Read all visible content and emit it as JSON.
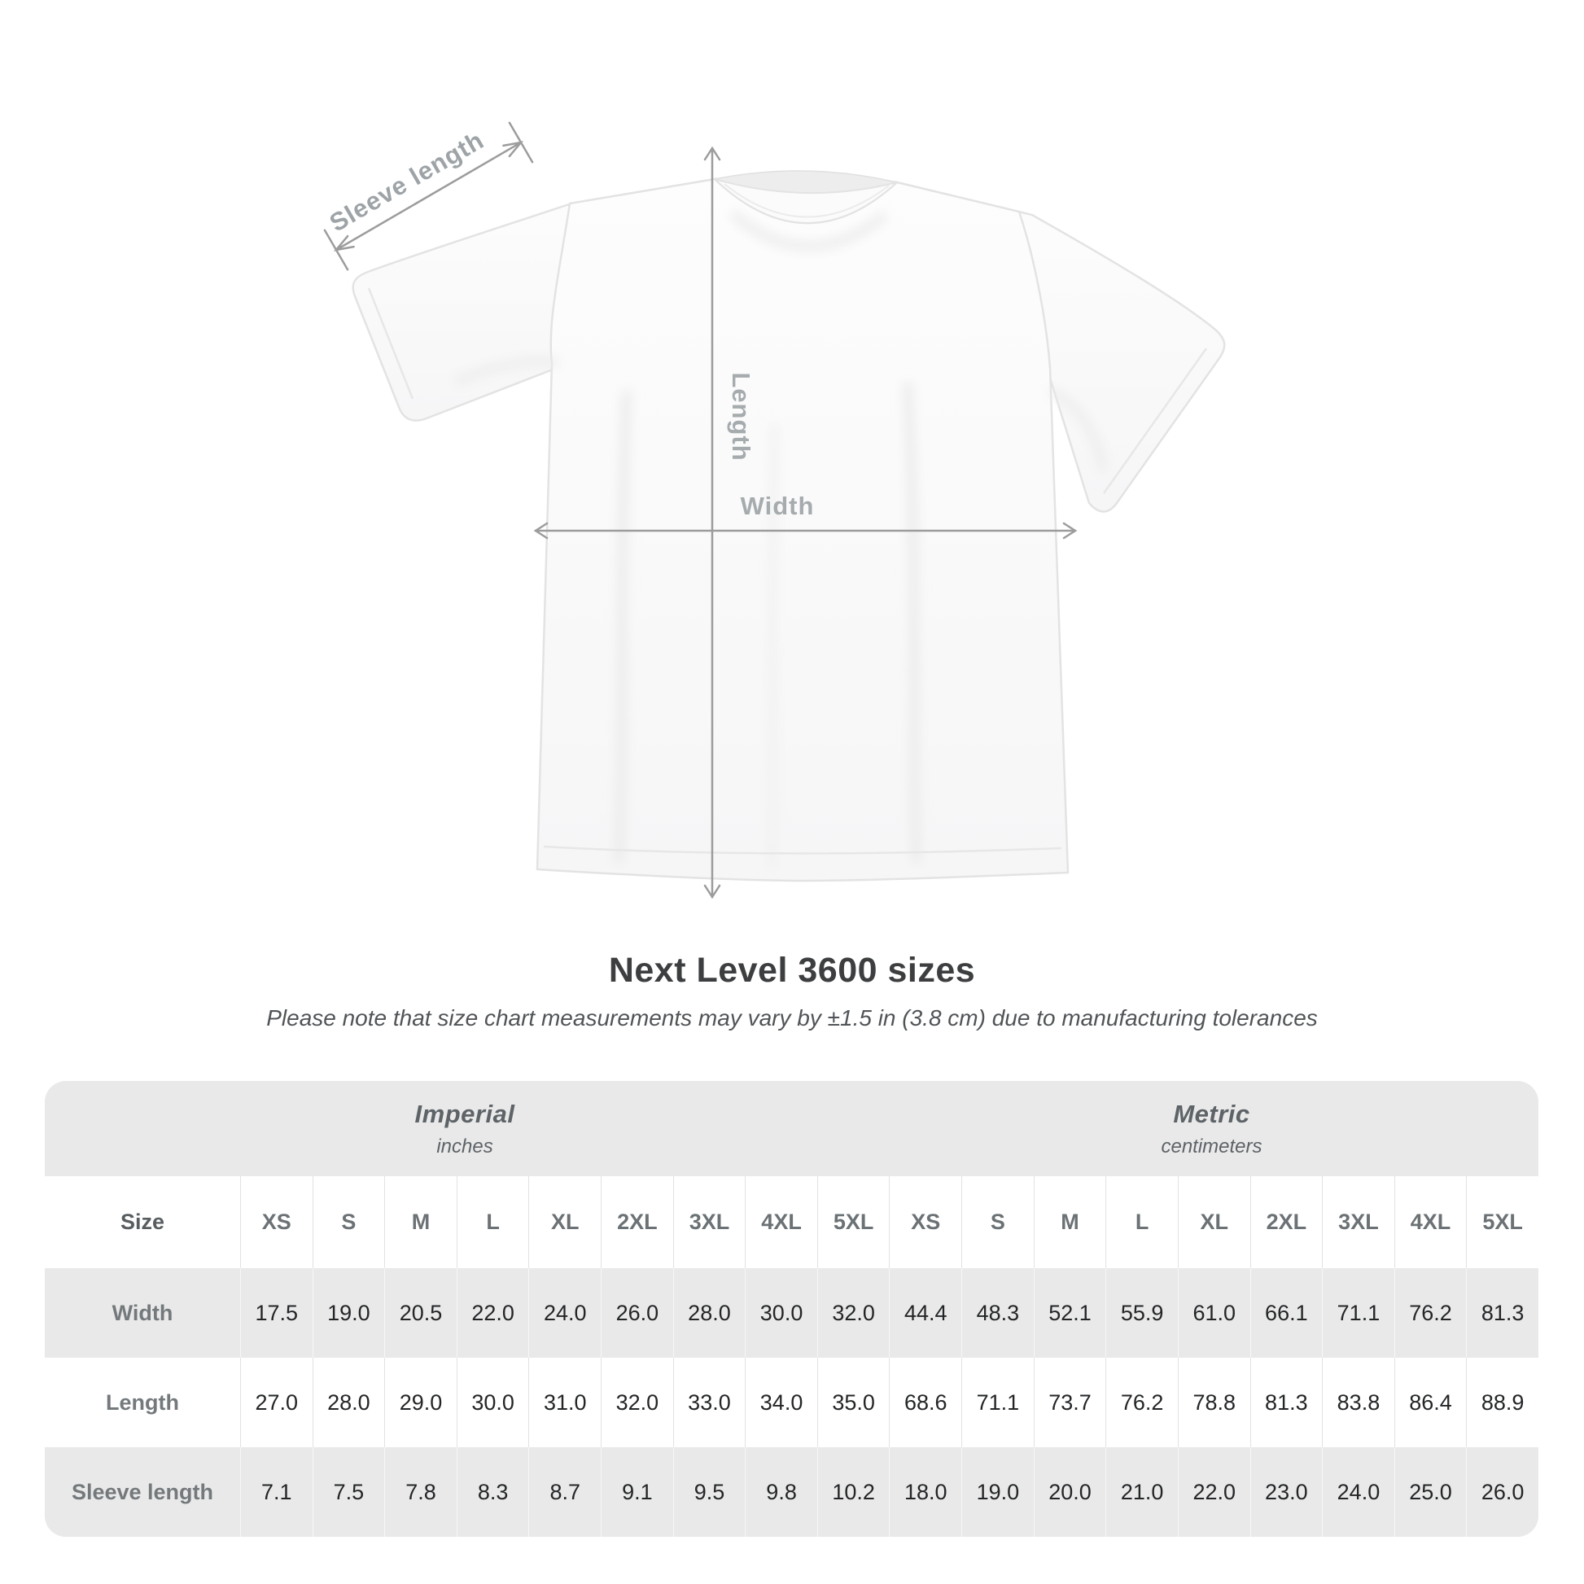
{
  "diagram": {
    "labels": {
      "sleeve": "Sleeve length",
      "length": "Length",
      "width": "Width"
    },
    "colors": {
      "annotation_line": "#9c9c9c",
      "annotation_text": "#9da3a6",
      "shirt_outline": "#e3e3e4"
    }
  },
  "heading": {
    "title": "Next Level 3600 sizes",
    "subtitle": "Please note that size chart measurements may vary by ±1.5 in (3.8 cm) due to manufacturing tolerances"
  },
  "size_chart": {
    "unit_groups": [
      {
        "name": "Imperial",
        "unit": "inches"
      },
      {
        "name": "Metric",
        "unit": "centimeters"
      }
    ],
    "size_label": "Size",
    "sizes": [
      "XS",
      "S",
      "M",
      "L",
      "XL",
      "2XL",
      "3XL",
      "4XL",
      "5XL"
    ],
    "rows": [
      {
        "label": "Width",
        "imperial": [
          "17.5",
          "19.0",
          "20.5",
          "22.0",
          "24.0",
          "26.0",
          "28.0",
          "30.0",
          "32.0"
        ],
        "metric": [
          "44.4",
          "48.3",
          "52.1",
          "55.9",
          "61.0",
          "66.1",
          "71.1",
          "76.2",
          "81.3"
        ]
      },
      {
        "label": "Length",
        "imperial": [
          "27.0",
          "28.0",
          "29.0",
          "30.0",
          "31.0",
          "32.0",
          "33.0",
          "34.0",
          "35.0"
        ],
        "metric": [
          "68.6",
          "71.1",
          "73.7",
          "76.2",
          "78.8",
          "81.3",
          "83.8",
          "86.4",
          "88.9"
        ]
      },
      {
        "label": "Sleeve length",
        "imperial": [
          "7.1",
          "7.5",
          "7.8",
          "8.3",
          "8.7",
          "9.1",
          "9.5",
          "9.8",
          "10.2"
        ],
        "metric": [
          "18.0",
          "19.0",
          "20.0",
          "21.0",
          "22.0",
          "23.0",
          "24.0",
          "25.0",
          "26.0"
        ]
      }
    ],
    "colors": {
      "card_background": "#e9e9e9",
      "row_white": "#ffffff",
      "header_text": "#6b7174",
      "value_text": "#232527"
    }
  }
}
